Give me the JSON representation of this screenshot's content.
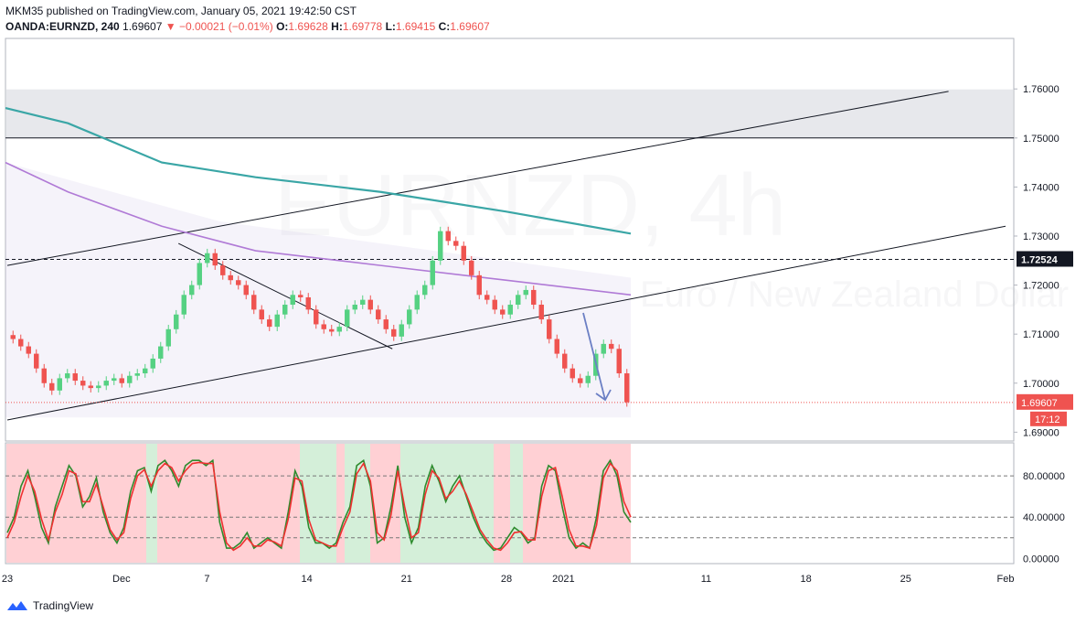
{
  "header": {
    "publisher_line": "MKM35 published on TradingView.com, January 05, 2021 19:42:50 CST",
    "symbol": "OANDA:EURNZD, 240",
    "last": "1.69607",
    "change": "▼ −0.00021 (−0.01%)",
    "o_label": "O:",
    "o_value": "1.69628",
    "h_label": "H:",
    "h_value": "1.69778",
    "l_label": "L:",
    "l_value": "1.69415",
    "c_label": "C:",
    "c_value": "1.69607"
  },
  "watermark": {
    "symbol": "EURNZD, 4h",
    "desc": "Euro / New Zealand Dollar"
  },
  "footer": {
    "brand": "TradingView"
  },
  "colors": {
    "up": "#26a69a",
    "up_candle": "#55d182",
    "down": "#ef5350",
    "ma_teal": "#3aa6a6",
    "ma_purple": "#b07ad6",
    "k_line": "#2e8b2e",
    "d_line": "#ef3030"
  },
  "chart_data": [
    {
      "type": "line",
      "title": "",
      "subtitle": "",
      "xlabel": "",
      "ylabel": "",
      "price_axis_labels": [
        "1.76000",
        "1.75000",
        "1.74000",
        "1.73000",
        "1.72000",
        "1.71000",
        "1.70000",
        "1.69000"
      ],
      "ylim": [
        1.6882,
        1.7703
      ],
      "time_axis_labels": [
        "23",
        "Dec",
        "7",
        "14",
        "21",
        "28",
        "2021",
        "11",
        "18",
        "25",
        "Feb"
      ],
      "grid": false,
      "horizontal_line_level": 1.72524,
      "horizontal_line_label": "1.72524",
      "last_price": 1.69607,
      "last_price_label": "1.69607",
      "countdown_label": "17:12",
      "shaded_zone": [
        1.75,
        1.7599
      ],
      "candles_close_approx": [
        1.709,
        1.7075,
        1.706,
        1.703,
        1.7,
        1.6985,
        1.701,
        1.702,
        1.7005,
        1.6995,
        1.699,
        1.6995,
        1.7005,
        1.701,
        1.7,
        1.7015,
        1.702,
        1.703,
        1.705,
        1.7075,
        1.711,
        1.714,
        1.718,
        1.72,
        1.7245,
        1.7265,
        1.724,
        1.722,
        1.721,
        1.72,
        1.718,
        1.715,
        1.713,
        1.7115,
        1.714,
        1.716,
        1.718,
        1.7175,
        1.715,
        1.712,
        1.711,
        1.7105,
        1.7115,
        1.715,
        1.716,
        1.717,
        1.715,
        1.713,
        1.711,
        1.7095,
        1.712,
        1.715,
        1.718,
        1.72,
        1.725,
        1.731,
        1.729,
        1.728,
        1.725,
        1.722,
        1.718,
        1.717,
        1.715,
        1.714,
        1.716,
        1.718,
        1.719,
        1.716,
        1.713,
        1.709,
        1.706,
        1.703,
        1.701,
        1.7,
        1.7015,
        1.706,
        1.708,
        1.707,
        1.702,
        1.6961
      ],
      "series": [
        {
          "name": "",
          "x": [
            0,
            0.1,
            0.25,
            0.4,
            0.6,
            0.8,
            1
          ],
          "values": [
            1.7561,
            1.753,
            1.745,
            1.742,
            1.739,
            1.735,
            1.7305
          ]
        },
        {
          "name": "",
          "x": [
            0,
            0.1,
            0.25,
            0.4,
            0.6,
            0.8,
            1
          ],
          "values": [
            1.745,
            1.739,
            1.732,
            1.727,
            1.724,
            1.721,
            1.718
          ]
        }
      ],
      "trendlines": [
        {
          "from": [
            "2020-11-23",
            1.724
          ],
          "to": [
            "2021-01-28",
            1.7595
          ]
        },
        {
          "from": [
            "2020-11-23",
            1.6925
          ],
          "to": [
            "2021-02-01",
            1.732
          ]
        },
        {
          "from": [
            "2020-12-05",
            1.7285
          ],
          "to": [
            "2020-12-20",
            1.707
          ]
        }
      ]
    },
    {
      "type": "line",
      "title": "",
      "price_axis_labels": [
        "80.00000",
        "40.00000",
        "0.00000"
      ],
      "ylim": [
        -5,
        112
      ],
      "guide_levels": [
        80,
        40,
        20
      ],
      "series": [
        {
          "name": "",
          "values": [
            25,
            40,
            70,
            85,
            60,
            30,
            15,
            50,
            70,
            90,
            80,
            50,
            60,
            78,
            45,
            25,
            15,
            30,
            65,
            85,
            88,
            65,
            90,
            95,
            85,
            70,
            90,
            95,
            95,
            90,
            95,
            35,
            10,
            10,
            15,
            25,
            10,
            15,
            20,
            15,
            10,
            45,
            85,
            70,
            30,
            15,
            15,
            10,
            15,
            35,
            50,
            90,
            95,
            70,
            15,
            20,
            50,
            90,
            40,
            15,
            30,
            70,
            90,
            75,
            55,
            70,
            80,
            60,
            40,
            25,
            15,
            8,
            10,
            20,
            30,
            25,
            15,
            20,
            70,
            90,
            85,
            50,
            20,
            10,
            15,
            10,
            40,
            85,
            95,
            80,
            45,
            35
          ]
        },
        {
          "name": "",
          "values": [
            20,
            35,
            60,
            80,
            65,
            38,
            18,
            45,
            62,
            85,
            82,
            55,
            55,
            72,
            50,
            28,
            18,
            25,
            58,
            80,
            86,
            70,
            85,
            92,
            88,
            75,
            85,
            92,
            93,
            92,
            92,
            45,
            15,
            8,
            12,
            20,
            12,
            12,
            18,
            16,
            12,
            38,
            78,
            75,
            38,
            18,
            15,
            12,
            12,
            30,
            45,
            82,
            92,
            75,
            25,
            18,
            42,
            85,
            50,
            20,
            25,
            62,
            85,
            78,
            58,
            65,
            75,
            62,
            45,
            28,
            18,
            10,
            8,
            15,
            25,
            26,
            18,
            18,
            60,
            85,
            88,
            60,
            28,
            12,
            12,
            10,
            32,
            78,
            92,
            85,
            55,
            40
          ]
        }
      ],
      "bg_zones": [
        "pink",
        "green",
        "pink",
        "green",
        "pink",
        "green",
        "pink",
        "green",
        "pink",
        "green",
        "pink"
      ]
    }
  ]
}
